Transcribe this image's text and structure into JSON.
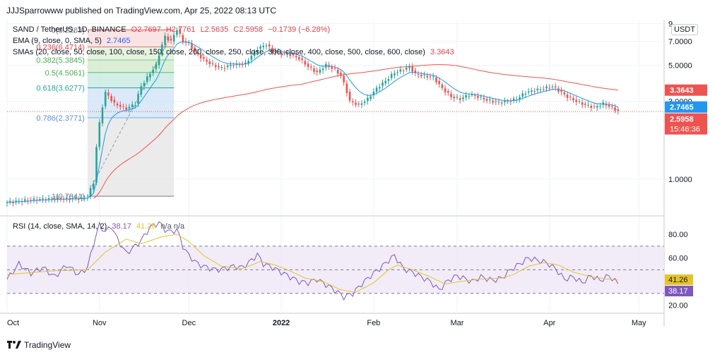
{
  "publisher": "JJJSparrowww published on TradingView.com, Apr 25, 2022 08:13 UTC",
  "logo_text": "TradingView",
  "currency_button": "USDT",
  "legend": {
    "symbol": "SAND / TetherUS, 1D, BINANCE",
    "open": "O2.7697",
    "high": "H2.7761",
    "low": "L2.5635",
    "close": "C2.5958",
    "change": "−0.1739 (−6.28%)",
    "ema_label": "EMA (9, close, 0, SMA, 5)",
    "ema_value": "2.7465",
    "sma_label": "SMAs (20, close, 50, close, 100, close, 150, close, 200, close, 250, close, 300, close, 400, close, 500, close, 600, close)",
    "sma_value": "3.3643",
    "rsi_label": "RSI (14, close, SMA, 14, 2)",
    "rsi_value": "38.17",
    "rsi_ma_value": "41.26",
    "rsi_extra": "n/a  n/a"
  },
  "colors": {
    "up": "#26a69a",
    "down": "#ef5350",
    "ema": "#2196f3",
    "sma": "#ef5350",
    "rsi": "#7e57c2",
    "rsi_ma": "#e5c42a",
    "rsi_band": "#ede7f6"
  },
  "chart_data": [
    {
      "type": "candlestick",
      "title": "SAND / TetherUS, 1D, BINANCE",
      "y_scale": "log",
      "ylim": [
        0.6,
        9.5
      ],
      "y_ticks": [
        1.0,
        3.0,
        5.0,
        7.0,
        9.0
      ],
      "y_tick_labels": [
        "1.0000",
        "3.0000",
        "5.0000",
        "7.0000",
        "9"
      ],
      "x_tick_labels": [
        "Oct",
        "Nov",
        "Dec",
        "2022",
        "Feb",
        "Mar",
        "Apr",
        "May"
      ],
      "x_tick_index": [
        0,
        31,
        61,
        92,
        123,
        151,
        182,
        212
      ],
      "close_anchors": [
        [
          0,
          0.72
        ],
        [
          10,
          0.75
        ],
        [
          25,
          0.76
        ],
        [
          27,
          0.78
        ],
        [
          29,
          0.95
        ],
        [
          31,
          2.2
        ],
        [
          33,
          3.4
        ],
        [
          36,
          2.9
        ],
        [
          40,
          2.7
        ],
        [
          43,
          2.9
        ],
        [
          45,
          3.7
        ],
        [
          47,
          4.2
        ],
        [
          50,
          5.0
        ],
        [
          53,
          7.5
        ],
        [
          55,
          7.0
        ],
        [
          57,
          8.3
        ],
        [
          59,
          7.0
        ],
        [
          61,
          6.8
        ],
        [
          63,
          6.0
        ],
        [
          66,
          5.4
        ],
        [
          69,
          5.0
        ],
        [
          72,
          4.8
        ],
        [
          75,
          5.0
        ],
        [
          80,
          5.1
        ],
        [
          84,
          6.3
        ],
        [
          87,
          6.7
        ],
        [
          89,
          6.1
        ],
        [
          92,
          5.9
        ],
        [
          95,
          5.8
        ],
        [
          98,
          5.5
        ],
        [
          101,
          4.9
        ],
        [
          104,
          4.5
        ],
        [
          107,
          5.0
        ],
        [
          110,
          4.7
        ],
        [
          112,
          4.3
        ],
        [
          115,
          3.0
        ],
        [
          118,
          2.85
        ],
        [
          121,
          3.1
        ],
        [
          124,
          3.6
        ],
        [
          127,
          4.0
        ],
        [
          130,
          4.5
        ],
        [
          133,
          4.7
        ],
        [
          135,
          4.9
        ],
        [
          137,
          4.4
        ],
        [
          140,
          4.3
        ],
        [
          143,
          4.2
        ],
        [
          146,
          3.6
        ],
        [
          149,
          3.2
        ],
        [
          152,
          3.1
        ],
        [
          155,
          3.3
        ],
        [
          158,
          3.2
        ],
        [
          161,
          3.05
        ],
        [
          165,
          2.95
        ],
        [
          168,
          3.0
        ],
        [
          171,
          3.1
        ],
        [
          174,
          3.4
        ],
        [
          177,
          3.5
        ],
        [
          180,
          3.6
        ],
        [
          183,
          3.7
        ],
        [
          185,
          3.5
        ],
        [
          188,
          3.2
        ],
        [
          191,
          3.0
        ],
        [
          194,
          2.85
        ],
        [
          197,
          2.75
        ],
        [
          200,
          2.9
        ],
        [
          203,
          2.75
        ],
        [
          205,
          2.6
        ]
      ],
      "last_price": 2.5958,
      "price_labels": [
        "3.3643",
        "2.7465",
        "2.5958",
        "15:46:36"
      ],
      "fibonacci": [
        {
          "level": "0(8.2283)",
          "value": 8.2283
        },
        {
          "level": "0.236(6.4714)",
          "value": 6.4714
        },
        {
          "level": "0.382(5.3845)",
          "value": 5.3845
        },
        {
          "level": "0.5(4.5061)",
          "value": 4.5061
        },
        {
          "level": "0.618(3.6277)",
          "value": 3.6277
        },
        {
          "level": "0.786(2.3771)",
          "value": 2.3771
        },
        {
          "level": "1(0.7841)",
          "value": 0.7841
        }
      ],
      "fib_range": [
        27,
        56
      ]
    },
    {
      "type": "line",
      "title": "RSI (14, close, SMA, 14, 2)",
      "ylim": [
        15,
        95
      ],
      "y_ticks": [
        20,
        40,
        60,
        80
      ],
      "y_tick_labels": [
        "20.00",
        "40.00",
        "60.00",
        "80.00"
      ],
      "bands": [
        30,
        50,
        70
      ],
      "rsi_anchors": [
        [
          0,
          42
        ],
        [
          4,
          55
        ],
        [
          8,
          47
        ],
        [
          12,
          52
        ],
        [
          16,
          44
        ],
        [
          20,
          54
        ],
        [
          24,
          46
        ],
        [
          27,
          52
        ],
        [
          29,
          72
        ],
        [
          31,
          88
        ],
        [
          33,
          82
        ],
        [
          35,
          87
        ],
        [
          37,
          76
        ],
        [
          40,
          64
        ],
        [
          43,
          70
        ],
        [
          45,
          75
        ],
        [
          48,
          86
        ],
        [
          51,
          90
        ],
        [
          53,
          84
        ],
        [
          55,
          82
        ],
        [
          57,
          84
        ],
        [
          59,
          70
        ],
        [
          61,
          62
        ],
        [
          64,
          55
        ],
        [
          67,
          52
        ],
        [
          70,
          50
        ],
        [
          73,
          51
        ],
        [
          76,
          53
        ],
        [
          79,
          52
        ],
        [
          82,
          58
        ],
        [
          84,
          63
        ],
        [
          86,
          55
        ],
        [
          89,
          52
        ],
        [
          92,
          48
        ],
        [
          95,
          44
        ],
        [
          98,
          40
        ],
        [
          101,
          39
        ],
        [
          104,
          42
        ],
        [
          108,
          36
        ],
        [
          111,
          31
        ],
        [
          113,
          27
        ],
        [
          116,
          30
        ],
        [
          119,
          38
        ],
        [
          122,
          45
        ],
        [
          125,
          51
        ],
        [
          128,
          58
        ],
        [
          130,
          62
        ],
        [
          133,
          51
        ],
        [
          136,
          48
        ],
        [
          139,
          44
        ],
        [
          142,
          40
        ],
        [
          145,
          33
        ],
        [
          148,
          41
        ],
        [
          151,
          45
        ],
        [
          153,
          43
        ],
        [
          156,
          40
        ],
        [
          159,
          44
        ],
        [
          163,
          41
        ],
        [
          166,
          43
        ],
        [
          169,
          50
        ],
        [
          172,
          55
        ],
        [
          175,
          60
        ],
        [
          178,
          58
        ],
        [
          181,
          56
        ],
        [
          184,
          51
        ],
        [
          187,
          42
        ],
        [
          190,
          44
        ],
        [
          193,
          39
        ],
        [
          196,
          45
        ],
        [
          199,
          41
        ],
        [
          202,
          45
        ],
        [
          205,
          38.17
        ]
      ],
      "ma_anchors": [
        [
          0,
          46
        ],
        [
          15,
          49
        ],
        [
          27,
          50
        ],
        [
          33,
          65
        ],
        [
          40,
          76
        ],
        [
          45,
          72
        ],
        [
          52,
          78
        ],
        [
          57,
          80
        ],
        [
          61,
          74
        ],
        [
          66,
          62
        ],
        [
          72,
          53
        ],
        [
          79,
          51
        ],
        [
          85,
          57
        ],
        [
          90,
          54
        ],
        [
          95,
          49
        ],
        [
          100,
          43
        ],
        [
          106,
          40
        ],
        [
          112,
          33
        ],
        [
          117,
          31
        ],
        [
          123,
          39
        ],
        [
          128,
          50
        ],
        [
          131,
          54
        ],
        [
          136,
          50
        ],
        [
          142,
          44
        ],
        [
          147,
          38
        ],
        [
          152,
          40
        ],
        [
          158,
          42
        ],
        [
          166,
          43
        ],
        [
          170,
          46
        ],
        [
          175,
          53
        ],
        [
          180,
          56
        ],
        [
          185,
          54
        ],
        [
          190,
          48
        ],
        [
          196,
          44
        ],
        [
          202,
          42
        ],
        [
          205,
          41.26
        ]
      ]
    }
  ]
}
